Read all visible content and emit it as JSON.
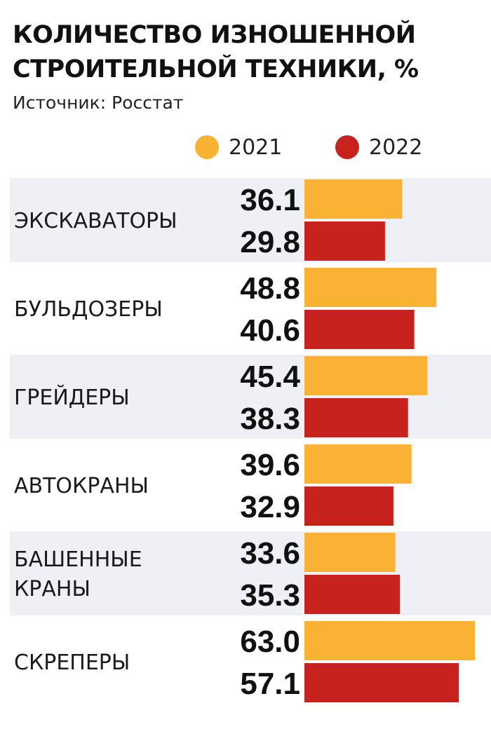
{
  "title_lines": [
    "КОЛИЧЕСТВО ИЗНОШЕННОЙ",
    "СТРОИТЕЛЬНОЙ ТЕХНИКИ, %"
  ],
  "source": "Источник: Росстат",
  "colors": {
    "2021": "#F9B233",
    "2022": "#C8221E",
    "band": "#EEF0F5"
  },
  "chart_data": {
    "type": "bar",
    "orientation": "horizontal",
    "title": "КОЛИЧЕСТВО ИЗНОШЕННОЙ СТРОИТЕЛЬНОЙ ТЕХНИКИ, %",
    "legend_position": "top-right",
    "categories": [
      [
        "ЭКСКАВАТОРЫ"
      ],
      [
        "БУЛЬДОЗЕРЫ"
      ],
      [
        "ГРЕЙДЕРЫ"
      ],
      [
        "АВТОКРАНЫ"
      ],
      [
        "БАШЕННЫЕ",
        "КРАНЫ"
      ],
      [
        "СКРЕПЕРЫ"
      ]
    ],
    "series": [
      {
        "name": "2021",
        "values": [
          "36.1",
          "48.8",
          "45.4",
          "39.6",
          "33.6",
          "63.0"
        ]
      },
      {
        "name": "2022",
        "values": [
          "29.8",
          "40.6",
          "38.3",
          "32.9",
          "35.3",
          "57.1"
        ]
      }
    ],
    "xlim": [
      0,
      63
    ]
  }
}
